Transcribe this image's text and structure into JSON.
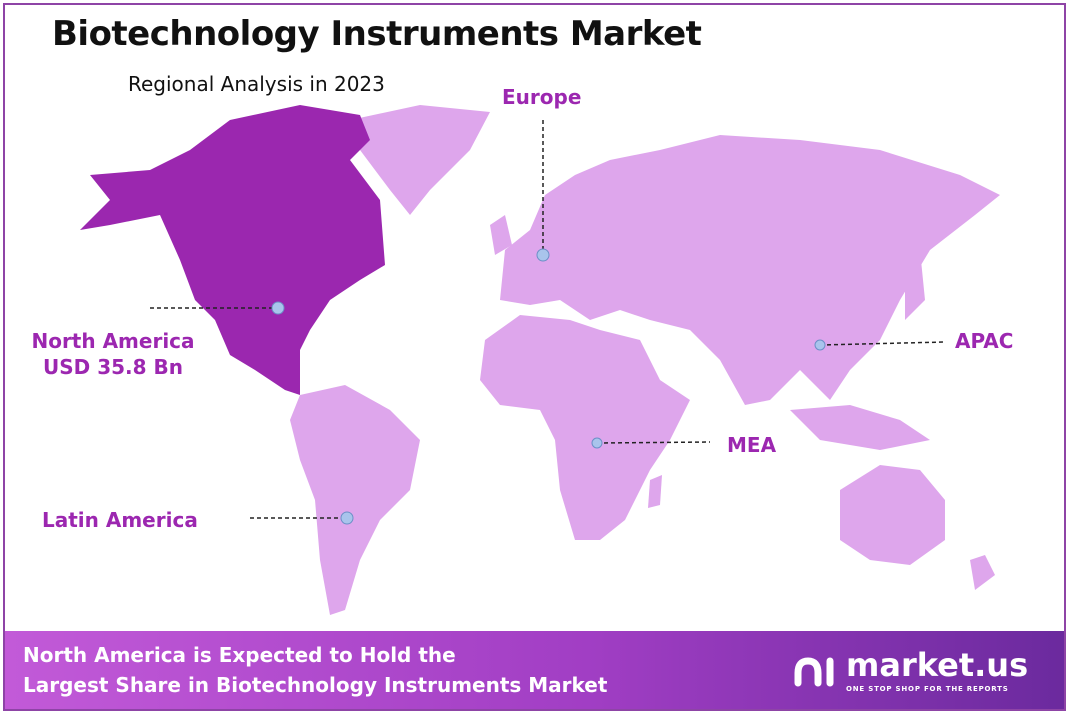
{
  "title": "Biotechnology Instruments Market",
  "subtitle": "Regional Analysis in 2023",
  "colors": {
    "highlight_region": "#9b27af",
    "other_regions": "#dea6ec",
    "label": "#9c27b0",
    "marker": "#a9c4ec"
  },
  "regions": {
    "north_america": {
      "name": "North America",
      "value": "USD 35.8 Bn",
      "highlighted": true
    },
    "europe": {
      "name": "Europe"
    },
    "apac": {
      "name": "APAC"
    },
    "mea": {
      "name": "MEA"
    },
    "latin_america": {
      "name": "Latin America"
    }
  },
  "banner": {
    "line1": "North America is Expected to Hold the",
    "line2": "Largest Share in Biotechnology Instruments Market"
  },
  "logo": {
    "name": "market.us",
    "tagline": "ONE STOP SHOP FOR THE REPORTS"
  }
}
